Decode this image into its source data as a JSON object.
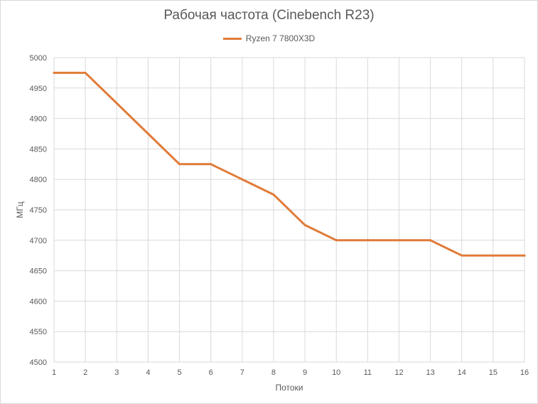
{
  "chart_data": {
    "type": "line",
    "title": "Рабочая частота (Cinebench R23)",
    "xlabel": "Потоки",
    "ylabel": "МГц",
    "categories": [
      "1",
      "2",
      "3",
      "4",
      "5",
      "6",
      "7",
      "8",
      "9",
      "10",
      "11",
      "12",
      "13",
      "14",
      "15",
      "16"
    ],
    "series": [
      {
        "name": "Ryzen 7 7800X3D",
        "color": "#e07b39",
        "values": [
          4975,
          4975,
          4925,
          4875,
          4825,
          4825,
          4800,
          4775,
          4725,
          4700,
          4700,
          4700,
          4700,
          4675,
          4675,
          4675
        ]
      }
    ],
    "ylim": [
      4500,
      5000
    ],
    "yticks": [
      4500,
      4550,
      4600,
      4650,
      4700,
      4750,
      4800,
      4850,
      4900,
      4950,
      5000
    ],
    "grid": true,
    "legend_position": "top"
  }
}
